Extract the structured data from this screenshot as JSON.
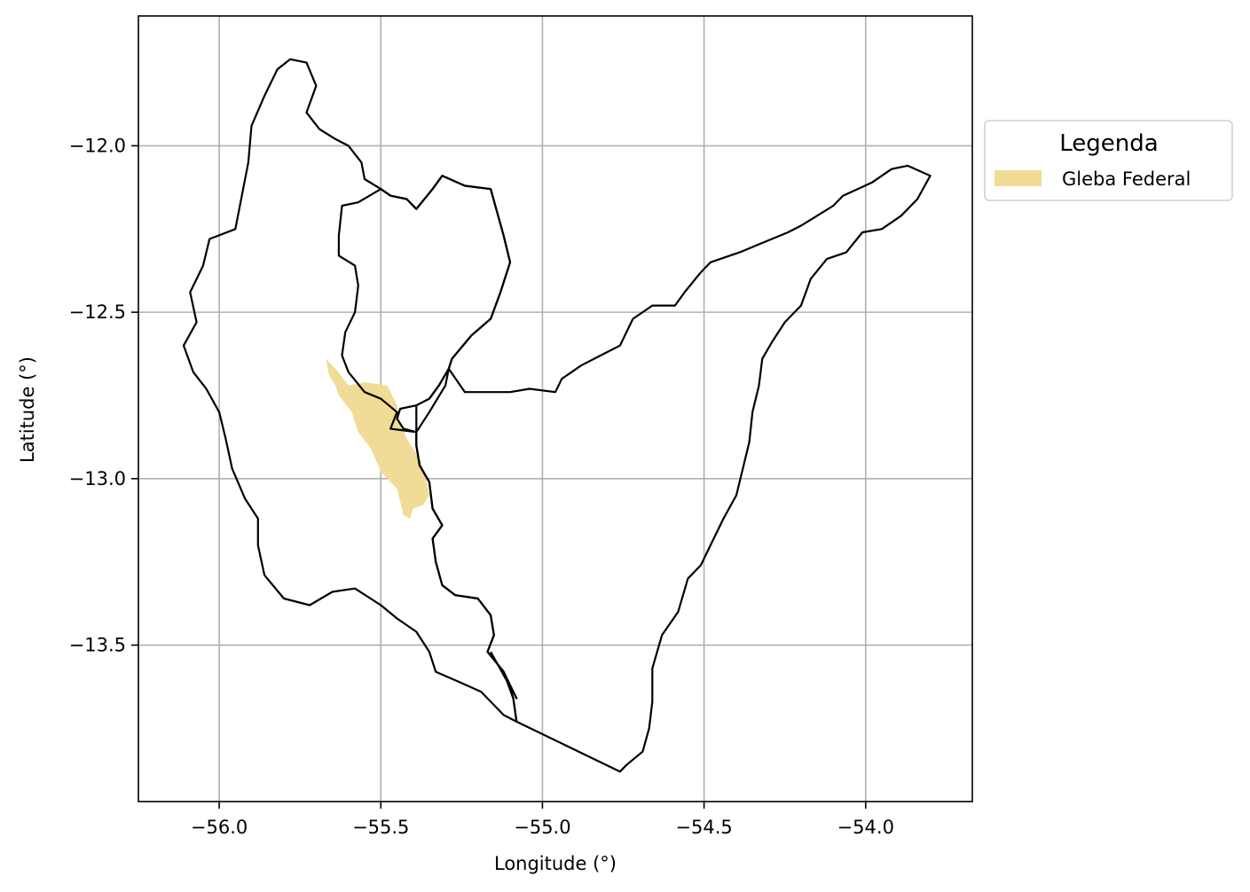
{
  "chart_data": {
    "type": "map",
    "xlabel": "Longitude (°)",
    "ylabel": "Latitude (°)",
    "xlim": [
      -56.25,
      -53.67
    ],
    "ylim": [
      -13.97,
      -11.61
    ],
    "xticks": [
      {
        "value": -56.0,
        "label": "−56.0"
      },
      {
        "value": -55.5,
        "label": "−55.5"
      },
      {
        "value": -55.0,
        "label": "−55.0"
      },
      {
        "value": -54.5,
        "label": "−54.5"
      },
      {
        "value": -54.0,
        "label": "−54.0"
      }
    ],
    "yticks": [
      {
        "value": -12.0,
        "label": "−12.0"
      },
      {
        "value": -12.5,
        "label": "−12.5"
      },
      {
        "value": -13.0,
        "label": "−13.0"
      },
      {
        "value": -13.5,
        "label": "−13.5"
      }
    ],
    "grid": true,
    "legend": {
      "title": "Legenda",
      "placement": "outside-upper-right",
      "entries": [
        {
          "label": "Gleba Federal",
          "color": "#f0dc96"
        }
      ]
    },
    "colors": {
      "outline": "#000000",
      "grid": "#b0b0b0",
      "gleba": "#f0dc96"
    },
    "boundaries": [
      {
        "name": "western-basin",
        "coords": [
          [
            -55.78,
            -11.74
          ],
          [
            -55.73,
            -11.75
          ],
          [
            -55.7,
            -11.82
          ],
          [
            -55.73,
            -11.9
          ],
          [
            -55.69,
            -11.95
          ],
          [
            -55.64,
            -11.98
          ],
          [
            -55.6,
            -12.0
          ],
          [
            -55.56,
            -12.05
          ],
          [
            -55.55,
            -12.1
          ],
          [
            -55.5,
            -12.13
          ],
          [
            -55.47,
            -12.15
          ],
          [
            -55.42,
            -12.16
          ],
          [
            -55.39,
            -12.19
          ],
          [
            -55.34,
            -12.13
          ],
          [
            -55.31,
            -12.09
          ],
          [
            -55.24,
            -12.12
          ],
          [
            -55.16,
            -12.13
          ],
          [
            -55.14,
            -12.2
          ],
          [
            -55.12,
            -12.27
          ],
          [
            -55.1,
            -12.35
          ],
          [
            -55.13,
            -12.44
          ],
          [
            -55.16,
            -12.52
          ],
          [
            -55.22,
            -12.57
          ],
          [
            -55.28,
            -12.64
          ],
          [
            -55.29,
            -12.67
          ],
          [
            -55.32,
            -12.72
          ],
          [
            -55.35,
            -12.76
          ],
          [
            -55.39,
            -12.78
          ],
          [
            -55.44,
            -12.79
          ],
          [
            -55.45,
            -12.82
          ],
          [
            -55.43,
            -12.85
          ],
          [
            -55.39,
            -12.86
          ],
          [
            -55.39,
            -12.9
          ],
          [
            -55.38,
            -12.96
          ],
          [
            -55.35,
            -13.01
          ],
          [
            -55.34,
            -13.09
          ],
          [
            -55.31,
            -13.14
          ],
          [
            -55.34,
            -13.18
          ],
          [
            -55.33,
            -13.25
          ],
          [
            -55.31,
            -13.32
          ],
          [
            -55.27,
            -13.35
          ],
          [
            -55.2,
            -13.36
          ],
          [
            -55.16,
            -13.41
          ],
          [
            -55.15,
            -13.47
          ],
          [
            -55.17,
            -13.52
          ],
          [
            -55.12,
            -13.58
          ],
          [
            -55.09,
            -13.66
          ],
          [
            -55.08,
            -13.73
          ],
          [
            -55.12,
            -13.71
          ],
          [
            -55.19,
            -13.64
          ],
          [
            -55.26,
            -13.61
          ],
          [
            -55.33,
            -13.58
          ],
          [
            -55.35,
            -13.52
          ],
          [
            -55.39,
            -13.46
          ],
          [
            -55.45,
            -13.42
          ],
          [
            -55.5,
            -13.38
          ],
          [
            -55.58,
            -13.33
          ],
          [
            -55.65,
            -13.34
          ],
          [
            -55.72,
            -13.38
          ],
          [
            -55.8,
            -13.36
          ],
          [
            -55.86,
            -13.29
          ],
          [
            -55.88,
            -13.2
          ],
          [
            -55.88,
            -13.12
          ],
          [
            -55.92,
            -13.06
          ],
          [
            -55.96,
            -12.97
          ],
          [
            -55.98,
            -12.88
          ],
          [
            -56.0,
            -12.8
          ],
          [
            -56.04,
            -12.73
          ],
          [
            -56.08,
            -12.68
          ],
          [
            -56.11,
            -12.6
          ],
          [
            -56.07,
            -12.53
          ],
          [
            -56.09,
            -12.44
          ],
          [
            -56.05,
            -12.36
          ],
          [
            -56.03,
            -12.28
          ],
          [
            -55.95,
            -12.25
          ],
          [
            -55.93,
            -12.15
          ],
          [
            -55.91,
            -12.05
          ],
          [
            -55.9,
            -11.94
          ],
          [
            -55.86,
            -11.85
          ],
          [
            -55.82,
            -11.77
          ],
          [
            -55.78,
            -11.74
          ]
        ]
      },
      {
        "name": "northern-basin",
        "coords": [
          [
            -55.39,
            -12.19
          ],
          [
            -55.42,
            -12.16
          ],
          [
            -55.47,
            -12.15
          ],
          [
            -55.5,
            -12.13
          ],
          [
            -55.57,
            -12.17
          ],
          [
            -55.62,
            -12.18
          ],
          [
            -55.63,
            -12.27
          ],
          [
            -55.63,
            -12.33
          ],
          [
            -55.58,
            -12.36
          ],
          [
            -55.57,
            -12.42
          ],
          [
            -55.58,
            -12.5
          ],
          [
            -55.61,
            -12.56
          ],
          [
            -55.62,
            -12.63
          ],
          [
            -55.6,
            -12.68
          ],
          [
            -55.55,
            -12.74
          ],
          [
            -55.5,
            -12.76
          ],
          [
            -55.45,
            -12.8
          ],
          [
            -55.47,
            -12.85
          ],
          [
            -55.39,
            -12.86
          ],
          [
            -55.39,
            -12.78
          ],
          [
            -55.35,
            -12.76
          ],
          [
            -55.32,
            -12.72
          ],
          [
            -55.29,
            -12.67
          ],
          [
            -55.28,
            -12.64
          ],
          [
            -55.22,
            -12.57
          ],
          [
            -55.16,
            -12.52
          ],
          [
            -55.13,
            -12.44
          ],
          [
            -55.1,
            -12.35
          ],
          [
            -55.12,
            -12.27
          ],
          [
            -55.14,
            -12.2
          ],
          [
            -55.16,
            -12.13
          ],
          [
            -55.24,
            -12.12
          ],
          [
            -55.31,
            -12.09
          ],
          [
            -55.34,
            -12.13
          ],
          [
            -55.39,
            -12.19
          ]
        ]
      },
      {
        "name": "eastern-basin",
        "coords": [
          [
            -55.29,
            -12.67
          ],
          [
            -55.24,
            -12.74
          ],
          [
            -55.1,
            -12.74
          ],
          [
            -55.04,
            -12.73
          ],
          [
            -54.96,
            -12.74
          ],
          [
            -54.94,
            -12.7
          ],
          [
            -54.88,
            -12.66
          ],
          [
            -54.82,
            -12.63
          ],
          [
            -54.76,
            -12.6
          ],
          [
            -54.72,
            -12.52
          ],
          [
            -54.66,
            -12.48
          ],
          [
            -54.59,
            -12.48
          ],
          [
            -54.56,
            -12.44
          ],
          [
            -54.51,
            -12.38
          ],
          [
            -54.48,
            -12.35
          ],
          [
            -54.45,
            -12.34
          ],
          [
            -54.39,
            -12.32
          ],
          [
            -54.34,
            -12.3
          ],
          [
            -54.29,
            -12.28
          ],
          [
            -54.24,
            -12.26
          ],
          [
            -54.2,
            -12.24
          ],
          [
            -54.15,
            -12.21
          ],
          [
            -54.1,
            -12.18
          ],
          [
            -54.07,
            -12.15
          ],
          [
            -53.98,
            -12.11
          ],
          [
            -53.92,
            -12.07
          ],
          [
            -53.87,
            -12.06
          ],
          [
            -53.8,
            -12.09
          ],
          [
            -53.84,
            -12.16
          ],
          [
            -53.89,
            -12.21
          ],
          [
            -53.95,
            -12.25
          ],
          [
            -54.01,
            -12.26
          ],
          [
            -54.06,
            -12.32
          ],
          [
            -54.12,
            -12.34
          ],
          [
            -54.17,
            -12.4
          ],
          [
            -54.2,
            -12.48
          ],
          [
            -54.25,
            -12.53
          ],
          [
            -54.29,
            -12.59
          ],
          [
            -54.32,
            -12.64
          ],
          [
            -54.33,
            -12.72
          ],
          [
            -54.35,
            -12.8
          ],
          [
            -54.36,
            -12.89
          ],
          [
            -54.38,
            -12.97
          ],
          [
            -54.4,
            -13.05
          ],
          [
            -54.44,
            -13.12
          ],
          [
            -54.48,
            -13.2
          ],
          [
            -54.51,
            -13.26
          ],
          [
            -54.55,
            -13.3
          ],
          [
            -54.58,
            -13.4
          ],
          [
            -54.63,
            -13.47
          ],
          [
            -54.66,
            -13.57
          ],
          [
            -54.66,
            -13.67
          ],
          [
            -54.67,
            -13.75
          ],
          [
            -54.69,
            -13.82
          ],
          [
            -54.74,
            -13.86
          ],
          [
            -54.76,
            -13.88
          ],
          [
            -55.08,
            -13.73
          ],
          [
            -55.09,
            -13.66
          ],
          [
            -55.12,
            -13.58
          ],
          [
            -55.17,
            -13.52
          ],
          [
            -55.15,
            -13.47
          ],
          [
            -55.16,
            -13.41
          ],
          [
            -55.2,
            -13.36
          ],
          [
            -55.27,
            -13.35
          ],
          [
            -55.31,
            -13.32
          ],
          [
            -55.33,
            -13.25
          ],
          [
            -55.34,
            -13.18
          ],
          [
            -55.31,
            -13.14
          ],
          [
            -55.34,
            -13.09
          ],
          [
            -55.35,
            -13.01
          ],
          [
            -55.38,
            -12.96
          ],
          [
            -55.39,
            -12.9
          ],
          [
            -55.39,
            -12.86
          ],
          [
            -55.35,
            -12.8
          ],
          [
            -55.3,
            -12.72
          ],
          [
            -55.29,
            -12.67
          ]
        ]
      },
      {
        "name": "southern-connector",
        "coords": [
          [
            -55.16,
            -13.52
          ],
          [
            -55.08,
            -13.66
          ],
          [
            -55.12,
            -13.58
          ]
        ]
      }
    ],
    "gleba_federal": [
      [
        [
          -55.67,
          -12.64
        ],
        [
          -55.64,
          -12.67
        ],
        [
          -55.6,
          -12.72
        ],
        [
          -55.55,
          -12.71
        ],
        [
          -55.48,
          -12.72
        ],
        [
          -55.45,
          -12.78
        ],
        [
          -55.44,
          -12.83
        ],
        [
          -55.42,
          -12.88
        ],
        [
          -55.38,
          -12.94
        ],
        [
          -55.36,
          -13.0
        ],
        [
          -55.35,
          -13.05
        ],
        [
          -55.37,
          -13.08
        ],
        [
          -55.4,
          -13.09
        ],
        [
          -55.41,
          -13.12
        ],
        [
          -55.43,
          -13.11
        ],
        [
          -55.45,
          -13.03
        ],
        [
          -55.5,
          -12.98
        ],
        [
          -55.53,
          -12.91
        ],
        [
          -55.57,
          -12.86
        ],
        [
          -55.59,
          -12.8
        ],
        [
          -55.63,
          -12.75
        ],
        [
          -55.64,
          -12.72
        ],
        [
          -55.66,
          -12.69
        ],
        [
          -55.67,
          -12.64
        ]
      ]
    ]
  }
}
